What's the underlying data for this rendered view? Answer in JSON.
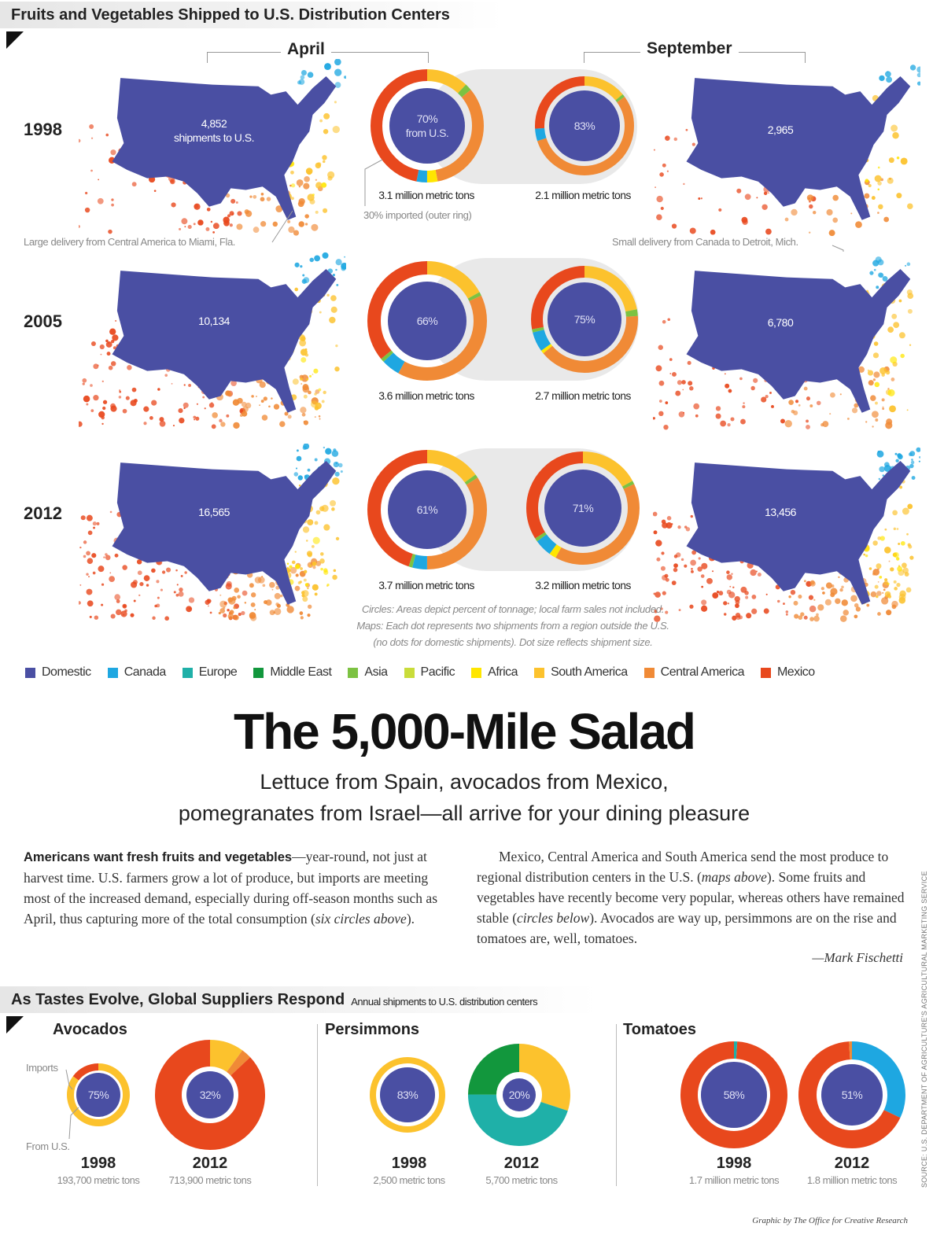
{
  "header": {
    "title": "Fruits and Vegetables Shipped to U.S. Distribution Centers"
  },
  "months": {
    "april": "April",
    "september": "September"
  },
  "maps": {
    "rows": [
      {
        "year": "1998",
        "april_shipments": "4,852",
        "april_sublabel": "shipments to U.S.",
        "september_shipments": "2,965"
      },
      {
        "year": "2005",
        "april_shipments": "10,134",
        "september_shipments": "6,780"
      },
      {
        "year": "2012",
        "april_shipments": "16,565",
        "september_shipments": "13,456"
      }
    ]
  },
  "annotations": {
    "miami": "Large delivery from Central America to Miami, Fla.",
    "detroit": "Small delivery from Canada to Detroit, Mich.",
    "outer_ring": "30% imported (outer ring)",
    "footnote_1": "Circles: Areas depict percent of tonnage; local farm sales not included.",
    "footnote_2": "Maps: Each dot represents two shipments from a region outside the U.S.",
    "footnote_3": "(no dots for domestic shipments). Dot size reflects shipment size."
  },
  "legend": [
    {
      "label": "Domestic",
      "color": "#4a4fa3"
    },
    {
      "label": "Canada",
      "color": "#1ea7e1"
    },
    {
      "label": "Europe",
      "color": "#1fb0a8"
    },
    {
      "label": "Middle East",
      "color": "#12973d"
    },
    {
      "label": "Asia",
      "color": "#7cc242"
    },
    {
      "label": "Pacific",
      "color": "#c9dc3a"
    },
    {
      "label": "Africa",
      "color": "#ffe600"
    },
    {
      "label": "South America",
      "color": "#fcc22d"
    },
    {
      "label": "Central America",
      "color": "#f08a36"
    },
    {
      "label": "Mexico",
      "color": "#e8481d"
    }
  ],
  "article": {
    "headline": "The 5,000-Mile Salad",
    "subhead_1": "Lettuce from Spain, avocados from Mexico,",
    "subhead_2": "pomegranates from Israel—all arrive for your dining pleasure",
    "p1_lead": "Americans want fresh fruits and vegetables",
    "p1_text": "—year-round, not just at harvest time. U.S. farmers grow a lot of produce, but imports are meeting most of the increased demand, especially during off-season months such as April, thus capturing more of the total consumption (",
    "p1_italic": "six circles above",
    "p1_end": ").",
    "p2_a": "Mexico, Central America and South America send the most produce to regional distribution centers in the U.S. (",
    "p2_i1": "maps above",
    "p2_b": "). Some fruits and vegetables have recently become very popular, whereas others have remained stable (",
    "p2_i2": "circles below",
    "p2_c": "). Avocados are way up, persimmons are on the rise and tomatoes are, well, tomatoes.",
    "byline": "—Mark Fischetti"
  },
  "section2": {
    "title": "As Tastes Evolve, Global Suppliers Respond",
    "subtitle": "Annual shipments to U.S. distribution centers",
    "panels": [
      "Avocados",
      "Persimmons",
      "Tomatoes"
    ],
    "imports_label": "Imports",
    "from_us_label": "From U.S."
  },
  "source": "SOURCE: U.S. DEPARTMENT OF AGRICULTURE'S AGRICULTURAL MARKETING SERVICE",
  "credit": "Graphic by The Office for Creative Research",
  "chart_data": [
    {
      "type": "pie",
      "year": "1998",
      "month": "April",
      "domestic_pct": 70,
      "center_label": "70%",
      "center_sublabel": "from U.S.",
      "total": "3.1 million metric tons",
      "imports": [
        {
          "region": "South America",
          "value": 12
        },
        {
          "region": "Asia",
          "value": 2
        },
        {
          "region": "Central America",
          "value": 33
        },
        {
          "region": "Africa",
          "value": 3
        },
        {
          "region": "Canada",
          "value": 3
        },
        {
          "region": "Mexico",
          "value": 47
        }
      ]
    },
    {
      "type": "pie",
      "year": "1998",
      "month": "September",
      "domestic_pct": 83,
      "center_label": "83%",
      "total": "2.1 million metric tons",
      "imports": [
        {
          "region": "South America",
          "value": 14
        },
        {
          "region": "Asia",
          "value": 1
        },
        {
          "region": "Central America",
          "value": 55
        },
        {
          "region": "Canada",
          "value": 4
        },
        {
          "region": "Mexico",
          "value": 26
        }
      ]
    },
    {
      "type": "pie",
      "year": "2005",
      "month": "April",
      "domestic_pct": 66,
      "center_label": "66%",
      "total": "3.6 million metric tons",
      "imports": [
        {
          "region": "South America",
          "value": 17
        },
        {
          "region": "Asia",
          "value": 1
        },
        {
          "region": "Central America",
          "value": 40
        },
        {
          "region": "Canada",
          "value": 5
        },
        {
          "region": "Asia",
          "value": 1
        },
        {
          "region": "Mexico",
          "value": 36
        }
      ]
    },
    {
      "type": "pie",
      "year": "2005",
      "month": "September",
      "domestic_pct": 75,
      "center_label": "75%",
      "total": "2.7 million metric tons",
      "imports": [
        {
          "region": "South America",
          "value": 22
        },
        {
          "region": "Asia",
          "value": 2
        },
        {
          "region": "Central America",
          "value": 40
        },
        {
          "region": "Africa",
          "value": 1
        },
        {
          "region": "Canada",
          "value": 6
        },
        {
          "region": "Asia",
          "value": 1
        },
        {
          "region": "Mexico",
          "value": 28
        }
      ]
    },
    {
      "type": "pie",
      "year": "2012",
      "month": "April",
      "domestic_pct": 61,
      "center_label": "61%",
      "total": "3.7 million metric tons",
      "imports": [
        {
          "region": "South America",
          "value": 15
        },
        {
          "region": "Asia",
          "value": 1
        },
        {
          "region": "Central America",
          "value": 34
        },
        {
          "region": "Canada",
          "value": 4
        },
        {
          "region": "Asia",
          "value": 1
        },
        {
          "region": "Mexico",
          "value": 45
        }
      ]
    },
    {
      "type": "pie",
      "year": "2012",
      "month": "September",
      "domestic_pct": 71,
      "center_label": "71%",
      "total": "3.2 million metric tons",
      "imports": [
        {
          "region": "South America",
          "value": 17
        },
        {
          "region": "Asia",
          "value": 1
        },
        {
          "region": "Central America",
          "value": 40
        },
        {
          "region": "Africa",
          "value": 2
        },
        {
          "region": "Canada",
          "value": 5
        },
        {
          "region": "Asia",
          "value": 1
        },
        {
          "region": "Mexico",
          "value": 34
        }
      ]
    },
    {
      "type": "pie",
      "product": "Avocados",
      "year": "1998",
      "domestic_pct": 75,
      "center_label": "75%",
      "total": "193,700 metric tons",
      "imports": [
        {
          "region": "South America",
          "value": 85
        },
        {
          "region": "Mexico",
          "value": 15
        }
      ]
    },
    {
      "type": "pie",
      "product": "Avocados",
      "year": "2012",
      "domestic_pct": 32,
      "center_label": "32%",
      "total": "713,900 metric tons",
      "imports": [
        {
          "region": "South America",
          "value": 10
        },
        {
          "region": "Central America",
          "value": 3
        },
        {
          "region": "Mexico",
          "value": 87
        }
      ]
    },
    {
      "type": "pie",
      "product": "Persimmons",
      "year": "1998",
      "domestic_pct": 83,
      "center_label": "83%",
      "total": "2,500 metric tons",
      "imports": [
        {
          "region": "South America",
          "value": 100
        }
      ]
    },
    {
      "type": "pie",
      "product": "Persimmons",
      "year": "2012",
      "domestic_pct": 20,
      "center_label": "20%",
      "total": "5,700 metric tons",
      "imports": [
        {
          "region": "South America",
          "value": 30
        },
        {
          "region": "Europe",
          "value": 45
        },
        {
          "region": "Middle East",
          "value": 25
        }
      ]
    },
    {
      "type": "pie",
      "product": "Tomatoes",
      "year": "1998",
      "domestic_pct": 58,
      "center_label": "58%",
      "total": "1.7 million metric tons",
      "imports": [
        {
          "region": "Europe",
          "value": 1
        },
        {
          "region": "Mexico",
          "value": 99
        }
      ]
    },
    {
      "type": "pie",
      "product": "Tomatoes",
      "year": "2012",
      "domestic_pct": 51,
      "center_label": "51%",
      "total": "1.8 million metric tons",
      "imports": [
        {
          "region": "Canada",
          "value": 32
        },
        {
          "region": "Mexico",
          "value": 67
        },
        {
          "region": "Central America",
          "value": 1
        }
      ]
    }
  ]
}
